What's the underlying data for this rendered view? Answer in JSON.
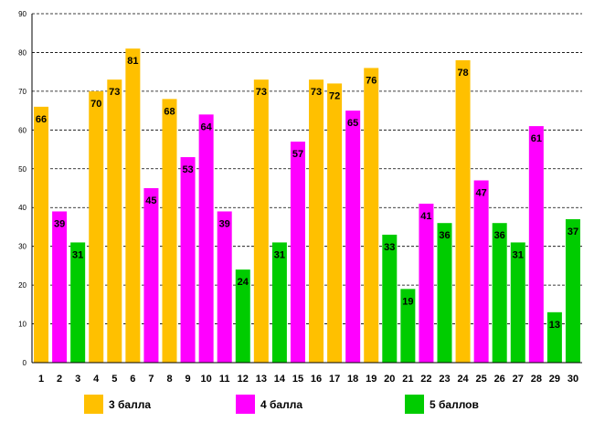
{
  "chart_data": {
    "type": "bar",
    "title": "",
    "xlabel": "",
    "ylabel": "",
    "ylim": [
      0,
      90
    ],
    "yticks": [
      "0",
      "10",
      "20",
      "30",
      "40",
      "50",
      "60",
      "70",
      "80",
      "90"
    ],
    "grid": true,
    "legend_position": "bottom",
    "categories": [
      "1",
      "2",
      "3",
      "4",
      "5",
      "6",
      "7",
      "8",
      "9",
      "10",
      "11",
      "12",
      "13",
      "14",
      "15",
      "16",
      "17",
      "18",
      "19",
      "20",
      "21",
      "22",
      "23",
      "24",
      "25",
      "26",
      "27",
      "28",
      "29",
      "30"
    ],
    "values": [
      66,
      39,
      31,
      70,
      73,
      81,
      45,
      68,
      53,
      64,
      39,
      24,
      73,
      31,
      57,
      73,
      72,
      65,
      76,
      33,
      19,
      41,
      36,
      78,
      47,
      36,
      31,
      61,
      13,
      37
    ],
    "series_index": [
      0,
      1,
      2,
      0,
      0,
      0,
      1,
      0,
      1,
      1,
      1,
      2,
      0,
      2,
      1,
      0,
      0,
      1,
      0,
      2,
      2,
      1,
      2,
      0,
      1,
      2,
      2,
      1,
      2,
      2
    ],
    "series": [
      {
        "name": "3 балла",
        "color": "#FFC000"
      },
      {
        "name": "4 балла",
        "color": "#FF00FF"
      },
      {
        "name": "5 баллов",
        "color": "#00CC00"
      }
    ]
  }
}
